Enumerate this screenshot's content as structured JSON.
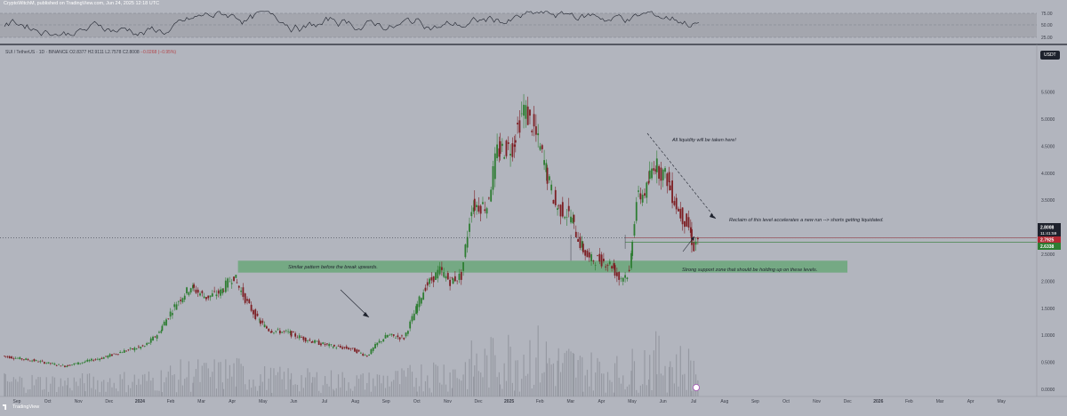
{
  "publisher": "CryptoWitchM, published on TradingView.com, Jun 24, 2025 12:18 UTC",
  "symbol": "SUI / TetherUS · 1D · BINANCE",
  "ohlc": "O2.8377 H2.9111 L2.7578 C2.8008",
  "change": "−0.0268 (−0.95%)",
  "currency": "USDT",
  "logo": "TradingView",
  "rsi_ticks": [
    "75.00",
    "50.00",
    "25.00"
  ],
  "price_ticks": [
    "5.5000",
    "5.0000",
    "4.5000",
    "4.0000",
    "3.5000",
    "3.0000",
    "2.5000",
    "2.0000",
    "1.5000",
    "1.0000",
    "0.5000",
    "0.0000"
  ],
  "time_labels": [
    "Sep",
    "Oct",
    "Nov",
    "Dec",
    "2024",
    "Feb",
    "Mar",
    "Apr",
    "May",
    "Jun",
    "Jul",
    "Aug",
    "Sep",
    "Oct",
    "Nov",
    "Dec",
    "2025",
    "Feb",
    "Mar",
    "Apr",
    "May",
    "Jun",
    "Jul",
    "Aug",
    "Sep",
    "Oct",
    "Nov",
    "Dec",
    "2026",
    "Feb",
    "Mar",
    "Apr",
    "May"
  ],
  "price_tags": {
    "last": "2.8008",
    "countdown": "11:41:59",
    "level": "2.7925",
    "low": "2.6338"
  },
  "annotations": {
    "liquidity": "All liquidity will be taken here!",
    "reclaim": "Reclaim of this level accelerates a new run --> shorts getting liquidated.",
    "pattern": "Similar pattern before the break upwards.",
    "support": "Strong support zone that should be holding up on these levels."
  },
  "colors": {
    "background": "#b2b5be",
    "bull": "#2e7d32",
    "bear": "#7d1f24",
    "zone": "#6aa77a",
    "last_tag": "#1e222d",
    "level_tag": "#b22833",
    "low_tag": "#2e7d32"
  },
  "chart_data": {
    "type": "candlestick",
    "scale": "linear",
    "ylim": [
      0,
      5.75
    ],
    "x_start": "2023-08-15",
    "x_end": "2026-05-31",
    "series": [
      {
        "name": "SUI / TetherUS",
        "points": [
          [
            "2023-08-15",
            0.62
          ],
          [
            "2023-09-15",
            0.53
          ],
          [
            "2023-10-15",
            0.43
          ],
          [
            "2023-11-01",
            0.5
          ],
          [
            "2023-11-20",
            0.58
          ],
          [
            "2023-12-10",
            0.7
          ],
          [
            "2024-01-01",
            0.8
          ],
          [
            "2024-01-15",
            1.05
          ],
          [
            "2024-02-01",
            1.6
          ],
          [
            "2024-02-15",
            1.9
          ],
          [
            "2024-03-01",
            1.7
          ],
          [
            "2024-03-15",
            1.8
          ],
          [
            "2024-03-28",
            2.1
          ],
          [
            "2024-04-10",
            1.6
          ],
          [
            "2024-04-20",
            1.3
          ],
          [
            "2024-05-01",
            1.1
          ],
          [
            "2024-05-20",
            1.05
          ],
          [
            "2024-06-10",
            0.9
          ],
          [
            "2024-07-01",
            0.8
          ],
          [
            "2024-07-20",
            0.75
          ],
          [
            "2024-08-05",
            0.62
          ],
          [
            "2024-08-15",
            0.85
          ],
          [
            "2024-08-25",
            1.0
          ],
          [
            "2024-09-10",
            0.95
          ],
          [
            "2024-09-20",
            1.4
          ],
          [
            "2024-10-01",
            1.9
          ],
          [
            "2024-10-15",
            2.2
          ],
          [
            "2024-10-25",
            2.0
          ],
          [
            "2024-11-05",
            2.1
          ],
          [
            "2024-11-15",
            3.4
          ],
          [
            "2024-11-30",
            3.4
          ],
          [
            "2024-12-10",
            4.4
          ],
          [
            "2024-12-25",
            4.5
          ],
          [
            "2025-01-05",
            5.2
          ],
          [
            "2025-01-15",
            4.8
          ],
          [
            "2025-01-25",
            4.2
          ],
          [
            "2025-02-05",
            3.4
          ],
          [
            "2025-02-20",
            3.2
          ],
          [
            "2025-03-01",
            2.7
          ],
          [
            "2025-03-10",
            2.4
          ],
          [
            "2025-03-20",
            2.4
          ],
          [
            "2025-04-01",
            2.3
          ],
          [
            "2025-04-08",
            2.05
          ],
          [
            "2025-04-18",
            2.15
          ],
          [
            "2025-04-25",
            3.5
          ],
          [
            "2025-05-05",
            3.7
          ],
          [
            "2025-05-12",
            4.2
          ],
          [
            "2025-05-25",
            3.9
          ],
          [
            "2025-06-05",
            3.3
          ],
          [
            "2025-06-15",
            3.0
          ],
          [
            "2025-06-20",
            2.63
          ],
          [
            "2025-06-24",
            2.8
          ]
        ]
      },
      {
        "name": "Volume",
        "values": "bars"
      },
      {
        "name": "RSI",
        "range": [
          0,
          100
        ]
      }
    ],
    "support_zone": [
      2.16,
      2.38
    ],
    "levels": [
      2.8,
      2.7925
    ],
    "legend": "none",
    "grid": false
  }
}
